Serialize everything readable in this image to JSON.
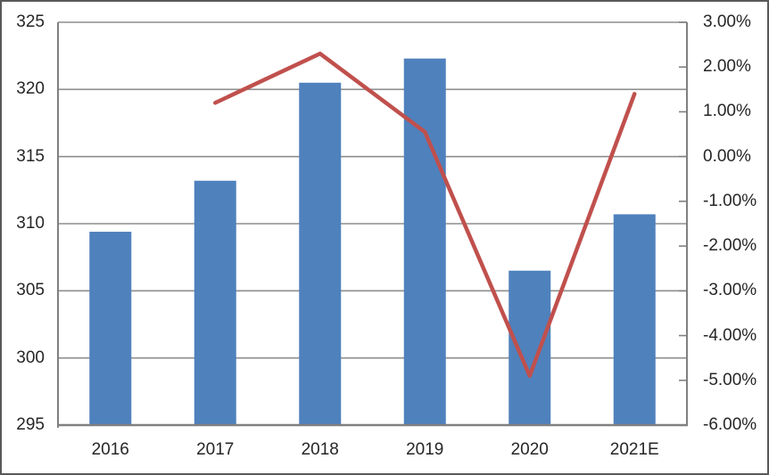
{
  "chart_data": {
    "type": "bar",
    "subtype": "combo-bar-line",
    "title": "",
    "categories": [
      "2016",
      "2017",
      "2018",
      "2019",
      "2020",
      "2021E"
    ],
    "series": [
      {
        "name": "bar-series",
        "type": "bar",
        "axis": "left",
        "color": "#4F81BD",
        "values": [
          309.4,
          313.2,
          320.5,
          322.3,
          306.5,
          310.7
        ]
      },
      {
        "name": "line-series",
        "type": "line",
        "axis": "right",
        "color": "#C0504D",
        "values": [
          null,
          1.2,
          2.3,
          0.55,
          -4.9,
          1.4
        ]
      }
    ],
    "left_axis": {
      "min": 295,
      "max": 325,
      "step": 5,
      "tick_labels": [
        "325",
        "320",
        "315",
        "310",
        "305",
        "300",
        "295"
      ]
    },
    "right_axis": {
      "min": -6,
      "max": 3,
      "step": 1,
      "tick_labels": [
        "3.00%",
        "2.00%",
        "1.00%",
        "0.00%",
        "-1.00%",
        "-2.00%",
        "-3.00%",
        "-4.00%",
        "-5.00%",
        "-6.00%"
      ]
    },
    "grid": true,
    "legend": false,
    "colors": {
      "bar": "#4F81BD",
      "line": "#C0504D",
      "gridline": "#8E8E8E",
      "axis": "#808080",
      "text": "#262626",
      "frame_border": "#595959",
      "background": "#FFFFFF"
    }
  }
}
